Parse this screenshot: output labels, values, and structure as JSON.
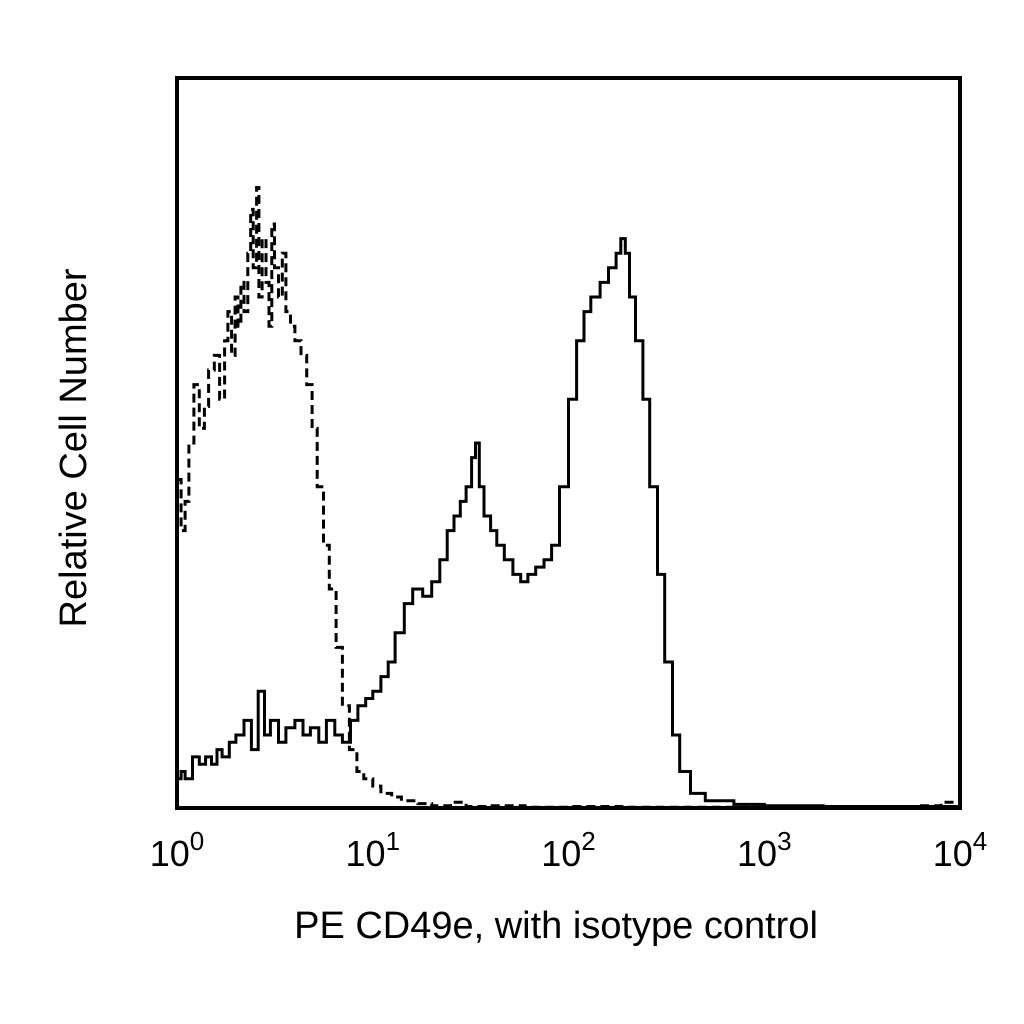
{
  "chart_data": {
    "type": "line",
    "title": "",
    "xlabel": "PE CD49e, with isotype control",
    "ylabel": "Relative Cell Number",
    "x_scale": "log10",
    "xlim": [
      1,
      10000
    ],
    "ylim": [
      0,
      100
    ],
    "x_ticks": [
      {
        "base": "10",
        "exp": "0",
        "value": 1
      },
      {
        "base": "10",
        "exp": "1",
        "value": 10
      },
      {
        "base": "10",
        "exp": "2",
        "value": 100
      },
      {
        "base": "10",
        "exp": "3",
        "value": 1000
      },
      {
        "base": "10",
        "exp": "4",
        "value": 10000
      }
    ],
    "grid": false,
    "series": [
      {
        "style": "dashed",
        "color": "#000000",
        "points": [
          [
            1.0,
            45
          ],
          [
            1.05,
            38
          ],
          [
            1.1,
            42
          ],
          [
            1.15,
            50
          ],
          [
            1.22,
            58
          ],
          [
            1.3,
            52
          ],
          [
            1.38,
            55
          ],
          [
            1.45,
            60
          ],
          [
            1.55,
            62
          ],
          [
            1.65,
            56
          ],
          [
            1.75,
            64
          ],
          [
            1.82,
            68
          ],
          [
            1.9,
            62
          ],
          [
            1.98,
            70
          ],
          [
            2.05,
            66
          ],
          [
            2.12,
            72
          ],
          [
            2.2,
            68
          ],
          [
            2.3,
            76
          ],
          [
            2.38,
            82
          ],
          [
            2.45,
            74
          ],
          [
            2.55,
            85
          ],
          [
            2.62,
            70
          ],
          [
            2.72,
            78
          ],
          [
            2.85,
            72
          ],
          [
            2.95,
            66
          ],
          [
            3.05,
            80
          ],
          [
            3.15,
            74
          ],
          [
            3.3,
            70
          ],
          [
            3.45,
            76
          ],
          [
            3.6,
            68
          ],
          [
            3.8,
            66
          ],
          [
            4.0,
            64
          ],
          [
            4.3,
            62
          ],
          [
            4.6,
            58
          ],
          [
            4.9,
            52
          ],
          [
            5.2,
            44
          ],
          [
            5.6,
            36
          ],
          [
            6.0,
            30
          ],
          [
            6.5,
            22
          ],
          [
            7.0,
            14
          ],
          [
            7.6,
            8
          ],
          [
            8.3,
            5
          ],
          [
            9.0,
            4
          ],
          [
            10.0,
            3
          ],
          [
            11.0,
            2
          ],
          [
            12.5,
            1.5
          ],
          [
            14.0,
            1
          ],
          [
            17.0,
            0.6
          ],
          [
            20.0,
            0.3
          ],
          [
            25.0,
            0.8
          ],
          [
            30.0,
            0.2
          ],
          [
            40.0,
            0.3
          ],
          [
            60.0,
            0.1
          ],
          [
            100.0,
            0.2
          ],
          [
            200.0,
            0.1
          ],
          [
            500.0,
            0.1
          ],
          [
            1000.0,
            0.1
          ],
          [
            3000.0,
            0.2
          ],
          [
            6000.0,
            0.3
          ],
          [
            8000.0,
            0.8
          ],
          [
            10000.0,
            0.5
          ]
        ]
      },
      {
        "style": "solid",
        "color": "#000000",
        "points": [
          [
            1.0,
            4
          ],
          [
            1.05,
            5
          ],
          [
            1.1,
            4
          ],
          [
            1.2,
            7
          ],
          [
            1.3,
            6
          ],
          [
            1.4,
            7
          ],
          [
            1.5,
            6
          ],
          [
            1.6,
            8
          ],
          [
            1.7,
            7
          ],
          [
            1.85,
            9
          ],
          [
            2.0,
            10
          ],
          [
            2.2,
            12
          ],
          [
            2.4,
            8
          ],
          [
            2.6,
            16
          ],
          [
            2.8,
            10
          ],
          [
            3.0,
            12
          ],
          [
            3.3,
            9
          ],
          [
            3.6,
            11
          ],
          [
            4.0,
            12
          ],
          [
            4.4,
            10
          ],
          [
            4.8,
            11
          ],
          [
            5.3,
            9
          ],
          [
            5.8,
            12
          ],
          [
            6.4,
            10
          ],
          [
            7.0,
            9
          ],
          [
            7.7,
            12
          ],
          [
            8.4,
            14
          ],
          [
            9.2,
            15
          ],
          [
            10.0,
            16
          ],
          [
            11.0,
            18
          ],
          [
            12.0,
            20
          ],
          [
            13.0,
            24
          ],
          [
            14.5,
            28
          ],
          [
            16.0,
            30
          ],
          [
            18.0,
            29
          ],
          [
            20.0,
            31
          ],
          [
            22.0,
            34
          ],
          [
            24.0,
            38
          ],
          [
            26.0,
            40
          ],
          [
            28.0,
            42
          ],
          [
            30.0,
            44
          ],
          [
            32.0,
            48
          ],
          [
            33.5,
            50
          ],
          [
            35.0,
            44
          ],
          [
            37.0,
            40
          ],
          [
            40.0,
            38
          ],
          [
            43.0,
            36
          ],
          [
            47.0,
            34
          ],
          [
            52.0,
            32
          ],
          [
            57.0,
            31
          ],
          [
            62.0,
            32
          ],
          [
            68.0,
            33
          ],
          [
            75.0,
            34
          ],
          [
            82.0,
            36
          ],
          [
            90.0,
            44
          ],
          [
            100.0,
            56
          ],
          [
            110.0,
            64
          ],
          [
            120.0,
            68
          ],
          [
            130.0,
            70
          ],
          [
            145.0,
            72
          ],
          [
            160.0,
            74
          ],
          [
            175.0,
            76
          ],
          [
            185.0,
            78
          ],
          [
            195.0,
            76
          ],
          [
            205.0,
            70
          ],
          [
            220.0,
            64
          ],
          [
            240.0,
            56
          ],
          [
            260.0,
            44
          ],
          [
            285.0,
            32
          ],
          [
            310.0,
            20
          ],
          [
            340.0,
            10
          ],
          [
            370.0,
            5
          ],
          [
            420.0,
            2
          ],
          [
            500.0,
            1
          ],
          [
            700.0,
            0.5
          ],
          [
            1000.0,
            0.3
          ],
          [
            2000.0,
            0.2
          ],
          [
            5000.0,
            0.2
          ],
          [
            10000.0,
            0.2
          ]
        ]
      }
    ]
  }
}
